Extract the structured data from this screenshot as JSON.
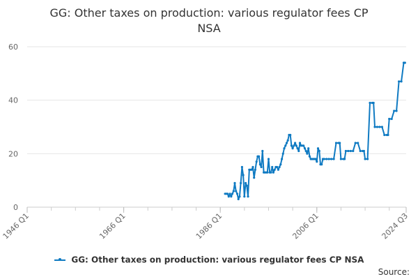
{
  "chart_data": {
    "type": "line",
    "title_line1": "GG: Other taxes on production: various regulator fees CP",
    "title_line2": "NSA",
    "series": [
      {
        "name": "GG: Other taxes on production: various regulator fees CP NSA",
        "color": "#0f7ac2",
        "points": [
          [
            1987.0,
            5
          ],
          [
            1987.25,
            5
          ],
          [
            1987.5,
            5
          ],
          [
            1987.75,
            4
          ],
          [
            1988.0,
            5
          ],
          [
            1988.25,
            4
          ],
          [
            1988.5,
            5
          ],
          [
            1988.75,
            6
          ],
          [
            1989.0,
            9
          ],
          [
            1989.25,
            6
          ],
          [
            1989.5,
            5
          ],
          [
            1989.75,
            3
          ],
          [
            1990.0,
            4
          ],
          [
            1990.25,
            9
          ],
          [
            1990.5,
            15
          ],
          [
            1990.75,
            12
          ],
          [
            1991.0,
            4
          ],
          [
            1991.25,
            9
          ],
          [
            1991.5,
            8
          ],
          [
            1991.75,
            4
          ],
          [
            1992.0,
            14
          ],
          [
            1992.25,
            14
          ],
          [
            1992.5,
            14
          ],
          [
            1992.75,
            15
          ],
          [
            1993.0,
            11
          ],
          [
            1993.25,
            14
          ],
          [
            1993.5,
            17
          ],
          [
            1993.75,
            19
          ],
          [
            1994.0,
            19
          ],
          [
            1994.25,
            16
          ],
          [
            1994.5,
            15
          ],
          [
            1994.75,
            21
          ],
          [
            1995.0,
            13
          ],
          [
            1995.25,
            13
          ],
          [
            1995.5,
            13
          ],
          [
            1995.75,
            13
          ],
          [
            1996.0,
            18
          ],
          [
            1996.25,
            13
          ],
          [
            1996.5,
            13
          ],
          [
            1996.75,
            15
          ],
          [
            1997.0,
            13
          ],
          [
            1997.25,
            14
          ],
          [
            1997.5,
            15
          ],
          [
            1997.75,
            15
          ],
          [
            1998.0,
            14
          ],
          [
            1998.25,
            15
          ],
          [
            1998.5,
            16
          ],
          [
            1998.75,
            18
          ],
          [
            1999.0,
            20
          ],
          [
            1999.25,
            22
          ],
          [
            1999.5,
            23
          ],
          [
            1999.75,
            24
          ],
          [
            2000.0,
            25
          ],
          [
            2000.25,
            27
          ],
          [
            2000.5,
            27
          ],
          [
            2000.75,
            23
          ],
          [
            2001.0,
            22
          ],
          [
            2001.25,
            23
          ],
          [
            2001.5,
            24
          ],
          [
            2001.75,
            23
          ],
          [
            2002.0,
            22
          ],
          [
            2002.25,
            21
          ],
          [
            2002.5,
            24
          ],
          [
            2002.75,
            23
          ],
          [
            2003.0,
            23
          ],
          [
            2003.25,
            23
          ],
          [
            2003.5,
            22
          ],
          [
            2003.75,
            21
          ],
          [
            2004.0,
            20
          ],
          [
            2004.25,
            22
          ],
          [
            2004.5,
            19
          ],
          [
            2004.75,
            18
          ],
          [
            2005.0,
            18
          ],
          [
            2005.25,
            18
          ],
          [
            2005.5,
            18
          ],
          [
            2005.75,
            18
          ],
          [
            2006.0,
            17
          ],
          [
            2006.25,
            22
          ],
          [
            2006.5,
            21
          ],
          [
            2006.75,
            16
          ],
          [
            2007.0,
            16
          ],
          [
            2007.25,
            18
          ],
          [
            2007.5,
            18
          ],
          [
            2008.0,
            18
          ],
          [
            2008.5,
            18
          ],
          [
            2009.0,
            18
          ],
          [
            2009.5,
            18
          ],
          [
            2010.0,
            24
          ],
          [
            2010.5,
            24
          ],
          [
            2010.75,
            24
          ],
          [
            2011.0,
            18
          ],
          [
            2011.5,
            18
          ],
          [
            2011.75,
            18
          ],
          [
            2012.0,
            21
          ],
          [
            2012.5,
            21
          ],
          [
            2013.0,
            21
          ],
          [
            2013.5,
            21
          ],
          [
            2014.0,
            24
          ],
          [
            2014.5,
            24
          ],
          [
            2015.0,
            21
          ],
          [
            2015.5,
            21
          ],
          [
            2015.75,
            21
          ],
          [
            2016.0,
            18
          ],
          [
            2016.5,
            18
          ],
          [
            2017.0,
            39
          ],
          [
            2017.5,
            39
          ],
          [
            2017.75,
            39
          ],
          [
            2018.0,
            30
          ],
          [
            2018.5,
            30
          ],
          [
            2019.0,
            30
          ],
          [
            2019.5,
            30
          ],
          [
            2020.0,
            27
          ],
          [
            2020.5,
            27
          ],
          [
            2020.75,
            27
          ],
          [
            2021.0,
            33
          ],
          [
            2021.5,
            33
          ],
          [
            2022.0,
            36
          ],
          [
            2022.5,
            36
          ],
          [
            2023.0,
            47
          ],
          [
            2023.5,
            47
          ],
          [
            2024.0,
            54
          ],
          [
            2024.25,
            54
          ]
        ]
      }
    ],
    "x_ticks": [
      {
        "label": "1946 Q1",
        "value": 1946.0
      },
      {
        "label": "1966 Q1",
        "value": 1966.0
      },
      {
        "label": "1986 Q1",
        "value": 1986.0
      },
      {
        "label": "2006 Q1",
        "value": 2006.0
      },
      {
        "label": "2024 Q3",
        "value": 2024.5
      }
    ],
    "xlim": [
      1946.0,
      2024.5
    ],
    "minor_tick_step": 5,
    "y_ticks": [
      0,
      20,
      40,
      60
    ],
    "ylim": [
      0,
      60
    ],
    "grid": true,
    "legend_position": "bottom",
    "source_label": "Source:"
  }
}
